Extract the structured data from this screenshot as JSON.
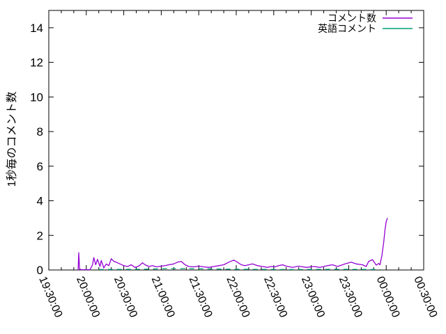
{
  "chart_data": {
    "type": "line",
    "title": "",
    "xlabel": "",
    "ylabel": "1秒毎のコメント数",
    "ylim": [
      0,
      15
    ],
    "y_ticks": [
      0,
      2,
      4,
      6,
      8,
      10,
      12,
      14
    ],
    "x_ticks": [
      "19:30:00",
      "20:00:00",
      "20:30:00",
      "21:00:00",
      "21:30:00",
      "22:00:00",
      "22:30:00",
      "23:00:00",
      "23:30:00",
      "00:00:00",
      "00:30:00"
    ],
    "x_minor_tick_interval_minutes": 10,
    "x_major_tick_interval_minutes": 30,
    "grid": false,
    "legend_position": "top-right-inside",
    "background_color": "#ffffff",
    "axis_color": "#000000",
    "series": [
      {
        "id": "comments",
        "name": "コメント数",
        "color": "#9400d3",
        "line_style": "solid",
        "points": [
          [
            "19:53:30",
            0
          ],
          [
            "19:54:00",
            1.0
          ],
          [
            "19:54:40",
            0.05
          ],
          [
            "19:56:00",
            0.02
          ],
          [
            "20:03:00",
            0.02
          ],
          [
            "20:05:00",
            0.3
          ],
          [
            "20:06:00",
            0.72
          ],
          [
            "20:07:30",
            0.3
          ],
          [
            "20:09:00",
            0.62
          ],
          [
            "20:11:00",
            0.2
          ],
          [
            "20:12:00",
            0.55
          ],
          [
            "20:14:00",
            0.12
          ],
          [
            "20:16:00",
            0.35
          ],
          [
            "20:18:00",
            0.25
          ],
          [
            "20:20:00",
            0.65
          ],
          [
            "20:22:00",
            0.5
          ],
          [
            "20:24:00",
            0.45
          ],
          [
            "20:27:00",
            0.35
          ],
          [
            "20:30:00",
            0.25
          ],
          [
            "20:33:00",
            0.2
          ],
          [
            "20:36:00",
            0.3
          ],
          [
            "20:39:00",
            0.15
          ],
          [
            "20:42:00",
            0.22
          ],
          [
            "20:45:00",
            0.42
          ],
          [
            "20:47:00",
            0.3
          ],
          [
            "20:50:00",
            0.2
          ],
          [
            "20:53:00",
            0.25
          ],
          [
            "20:56:00",
            0.18
          ],
          [
            "21:00:00",
            0.22
          ],
          [
            "21:03:00",
            0.25
          ],
          [
            "21:06:00",
            0.3
          ],
          [
            "21:10:00",
            0.35
          ],
          [
            "21:13:00",
            0.45
          ],
          [
            "21:16:00",
            0.5
          ],
          [
            "21:19:00",
            0.3
          ],
          [
            "21:22:00",
            0.2
          ],
          [
            "21:26:00",
            0.18
          ],
          [
            "21:30:00",
            0.22
          ],
          [
            "21:34:00",
            0.18
          ],
          [
            "21:38:00",
            0.15
          ],
          [
            "21:42:00",
            0.2
          ],
          [
            "21:46:00",
            0.25
          ],
          [
            "21:50:00",
            0.3
          ],
          [
            "21:54:00",
            0.45
          ],
          [
            "21:58:00",
            0.57
          ],
          [
            "22:01:00",
            0.45
          ],
          [
            "22:04:00",
            0.3
          ],
          [
            "22:07:00",
            0.25
          ],
          [
            "22:10:00",
            0.3
          ],
          [
            "22:13:00",
            0.35
          ],
          [
            "22:17:00",
            0.25
          ],
          [
            "22:21:00",
            0.2
          ],
          [
            "22:25:00",
            0.15
          ],
          [
            "22:28:00",
            0.2
          ],
          [
            "22:31:00",
            0.18
          ],
          [
            "22:34:00",
            0.25
          ],
          [
            "22:37:00",
            0.3
          ],
          [
            "22:40:00",
            0.22
          ],
          [
            "22:45:00",
            0.15
          ],
          [
            "22:50:00",
            0.22
          ],
          [
            "22:56:00",
            0.15
          ],
          [
            "23:02:00",
            0.2
          ],
          [
            "23:07:00",
            0.15
          ],
          [
            "23:13:00",
            0.25
          ],
          [
            "23:17:00",
            0.3
          ],
          [
            "23:21:00",
            0.2
          ],
          [
            "23:27:00",
            0.35
          ],
          [
            "23:32:00",
            0.45
          ],
          [
            "23:36:00",
            0.35
          ],
          [
            "23:41:00",
            0.3
          ],
          [
            "23:44:00",
            0.2
          ],
          [
            "23:46:00",
            0.5
          ],
          [
            "23:49:00",
            0.6
          ],
          [
            "23:52:00",
            0.28
          ],
          [
            "23:54:00",
            0.38
          ],
          [
            "23:55:00",
            0.3
          ],
          [
            "23:56:30",
            0.8
          ],
          [
            "23:58:00",
            1.6
          ],
          [
            "23:59:00",
            2.3
          ],
          [
            "00:00:00",
            2.8
          ],
          [
            "00:01:00",
            3.0
          ]
        ]
      },
      {
        "id": "english_comments",
        "name": "英語コメント",
        "color": "#009e73",
        "line_style": "solid",
        "points": [
          [
            "20:10:00",
            0.03
          ],
          [
            "20:45:00",
            0.04
          ],
          [
            "21:05:00",
            0.08
          ],
          [
            "21:20:00",
            0.08
          ],
          [
            "22:00:00",
            0.04
          ],
          [
            "22:45:00",
            0.03
          ],
          [
            "23:20:00",
            0.04
          ],
          [
            "23:55:00",
            0.03
          ]
        ]
      }
    ]
  }
}
